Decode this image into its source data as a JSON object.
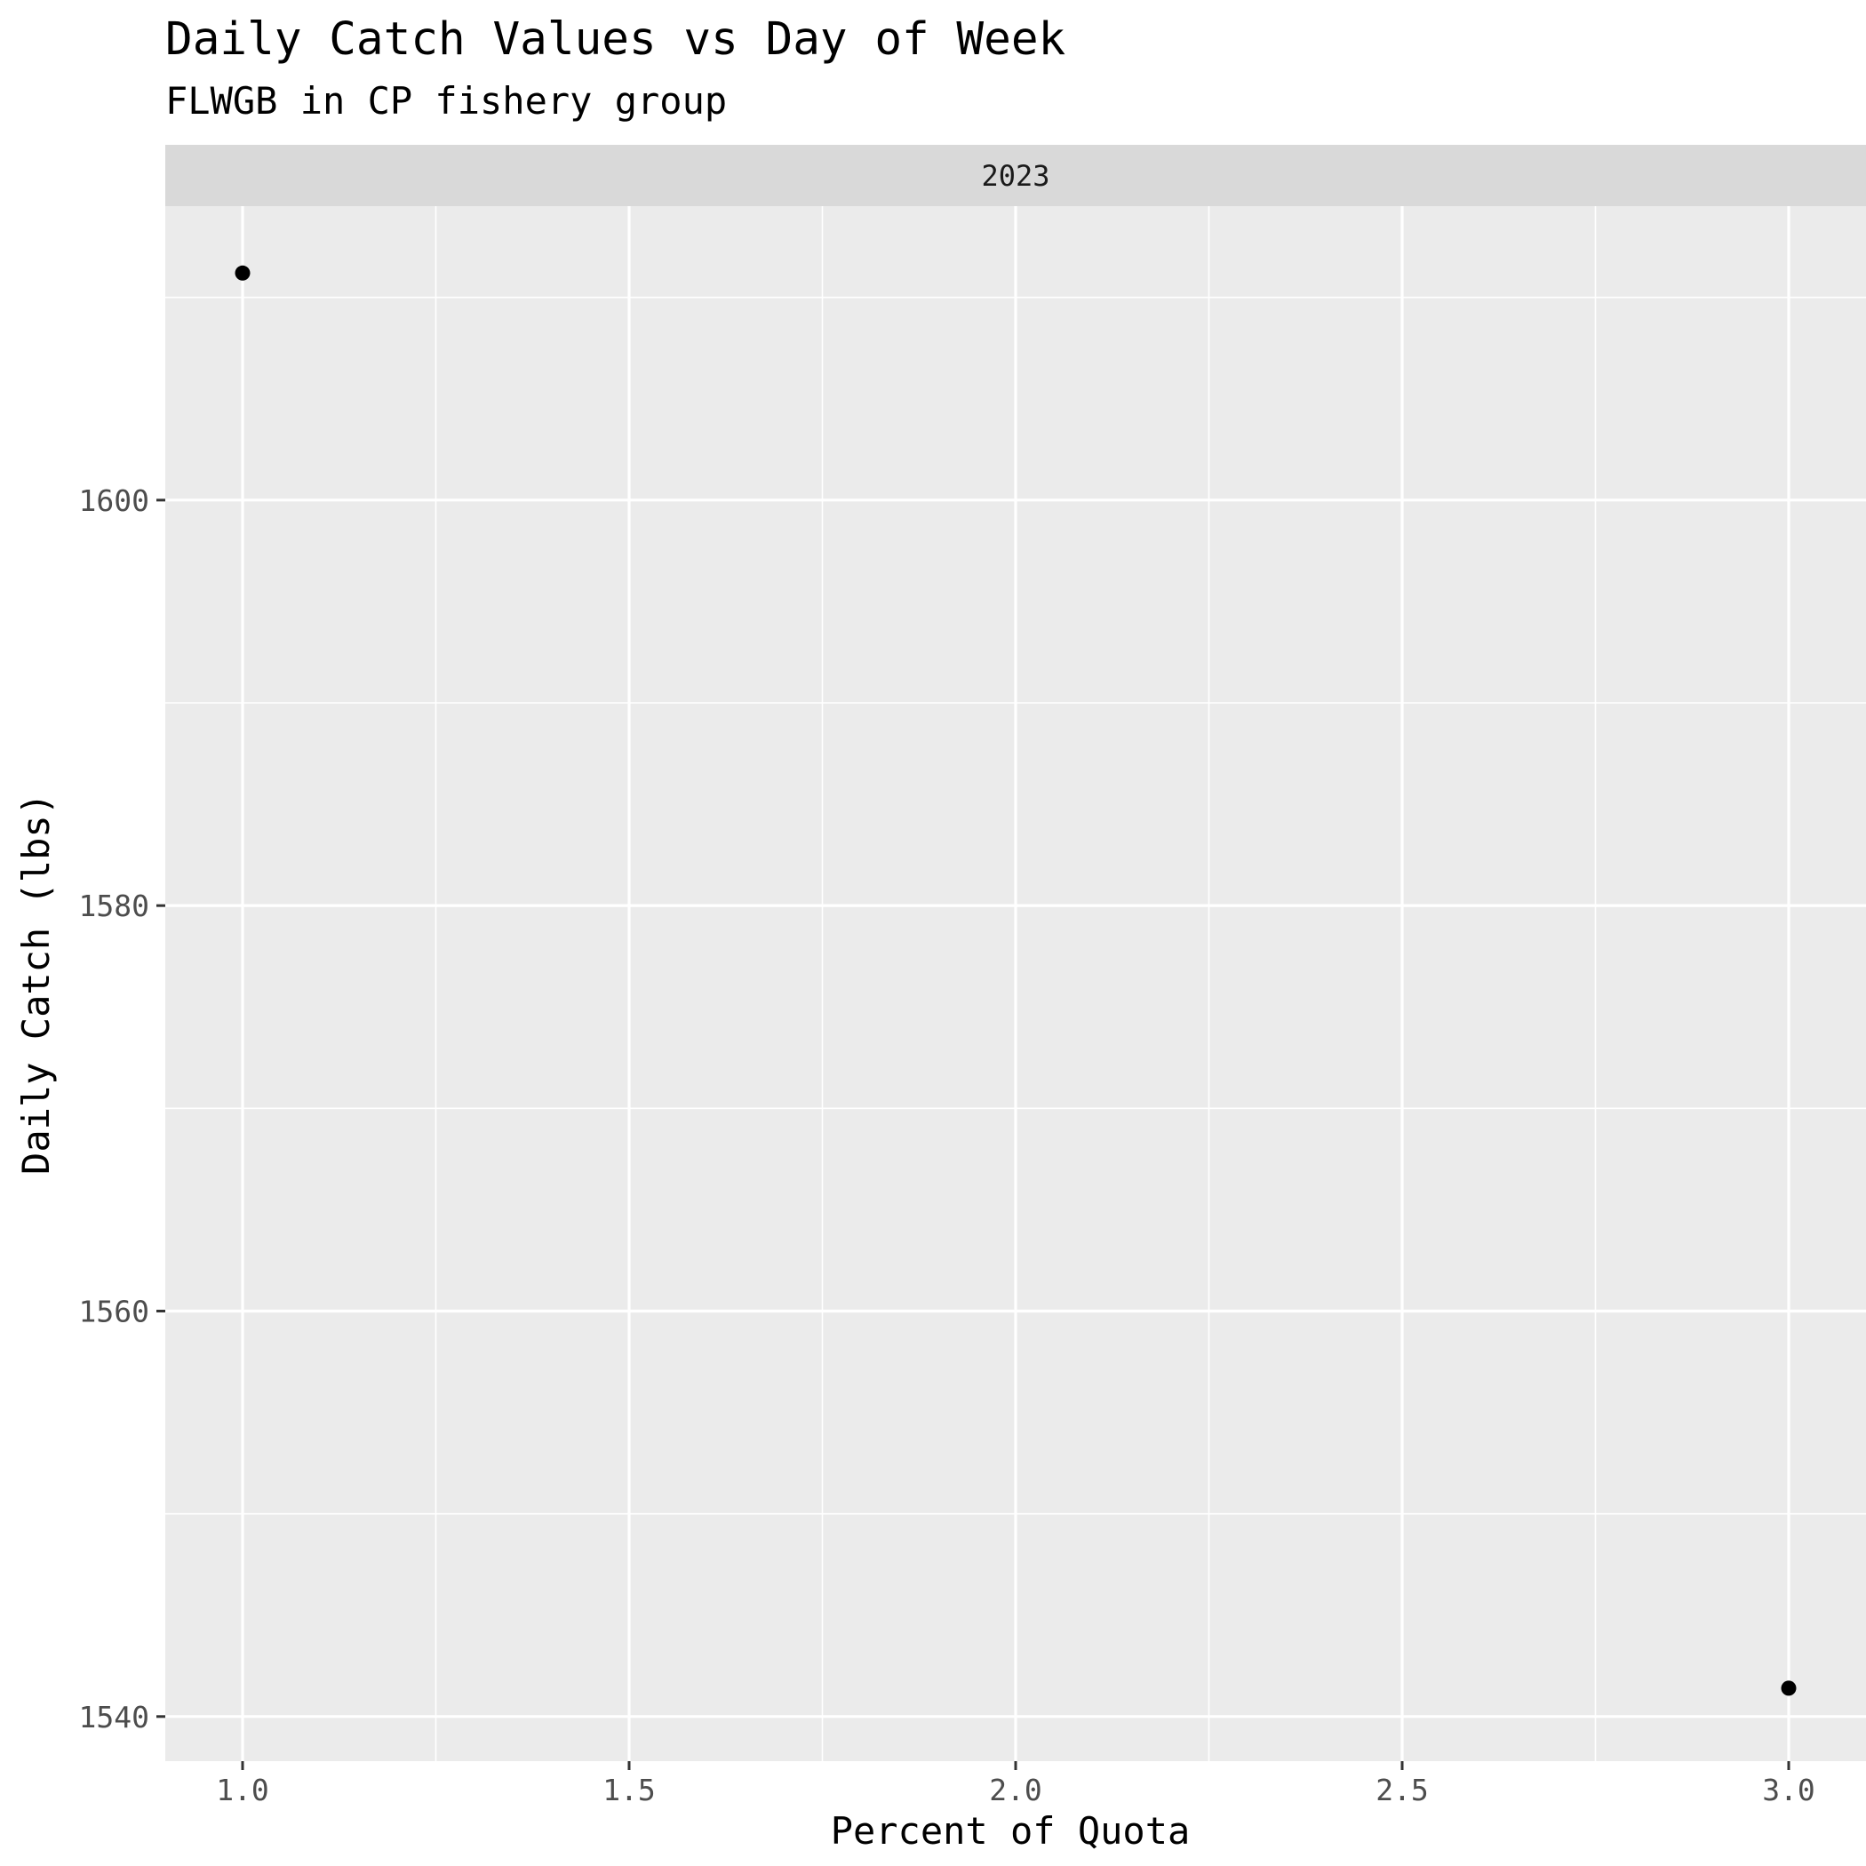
{
  "chart_data": {
    "type": "scatter",
    "title": "Daily Catch Values vs Day of Week",
    "subtitle": "FLWGB in CP fishery group",
    "facet": "2023",
    "xlabel": "Percent of Quota",
    "ylabel": "Daily Catch (lbs)",
    "xlim": [
      0.9,
      3.1
    ],
    "ylim": [
      1537.8,
      1614.5
    ],
    "x_ticks": [
      1.0,
      1.5,
      2.0,
      2.5,
      3.0
    ],
    "x_tick_labels": [
      "1.0",
      "1.5",
      "2.0",
      "2.5",
      "3.0"
    ],
    "y_ticks": [
      1540,
      1560,
      1580,
      1600
    ],
    "y_tick_labels": [
      "1540",
      "1560",
      "1580",
      "1600"
    ],
    "grid": true,
    "points": [
      {
        "x": 1.0,
        "y": 1611.2
      },
      {
        "x": 3.0,
        "y": 1541.4
      }
    ],
    "colors": {
      "panel_background": "#ebebeb",
      "grid_major": "#ffffff",
      "strip_background": "#d9d9d9",
      "point": "#000000"
    }
  }
}
